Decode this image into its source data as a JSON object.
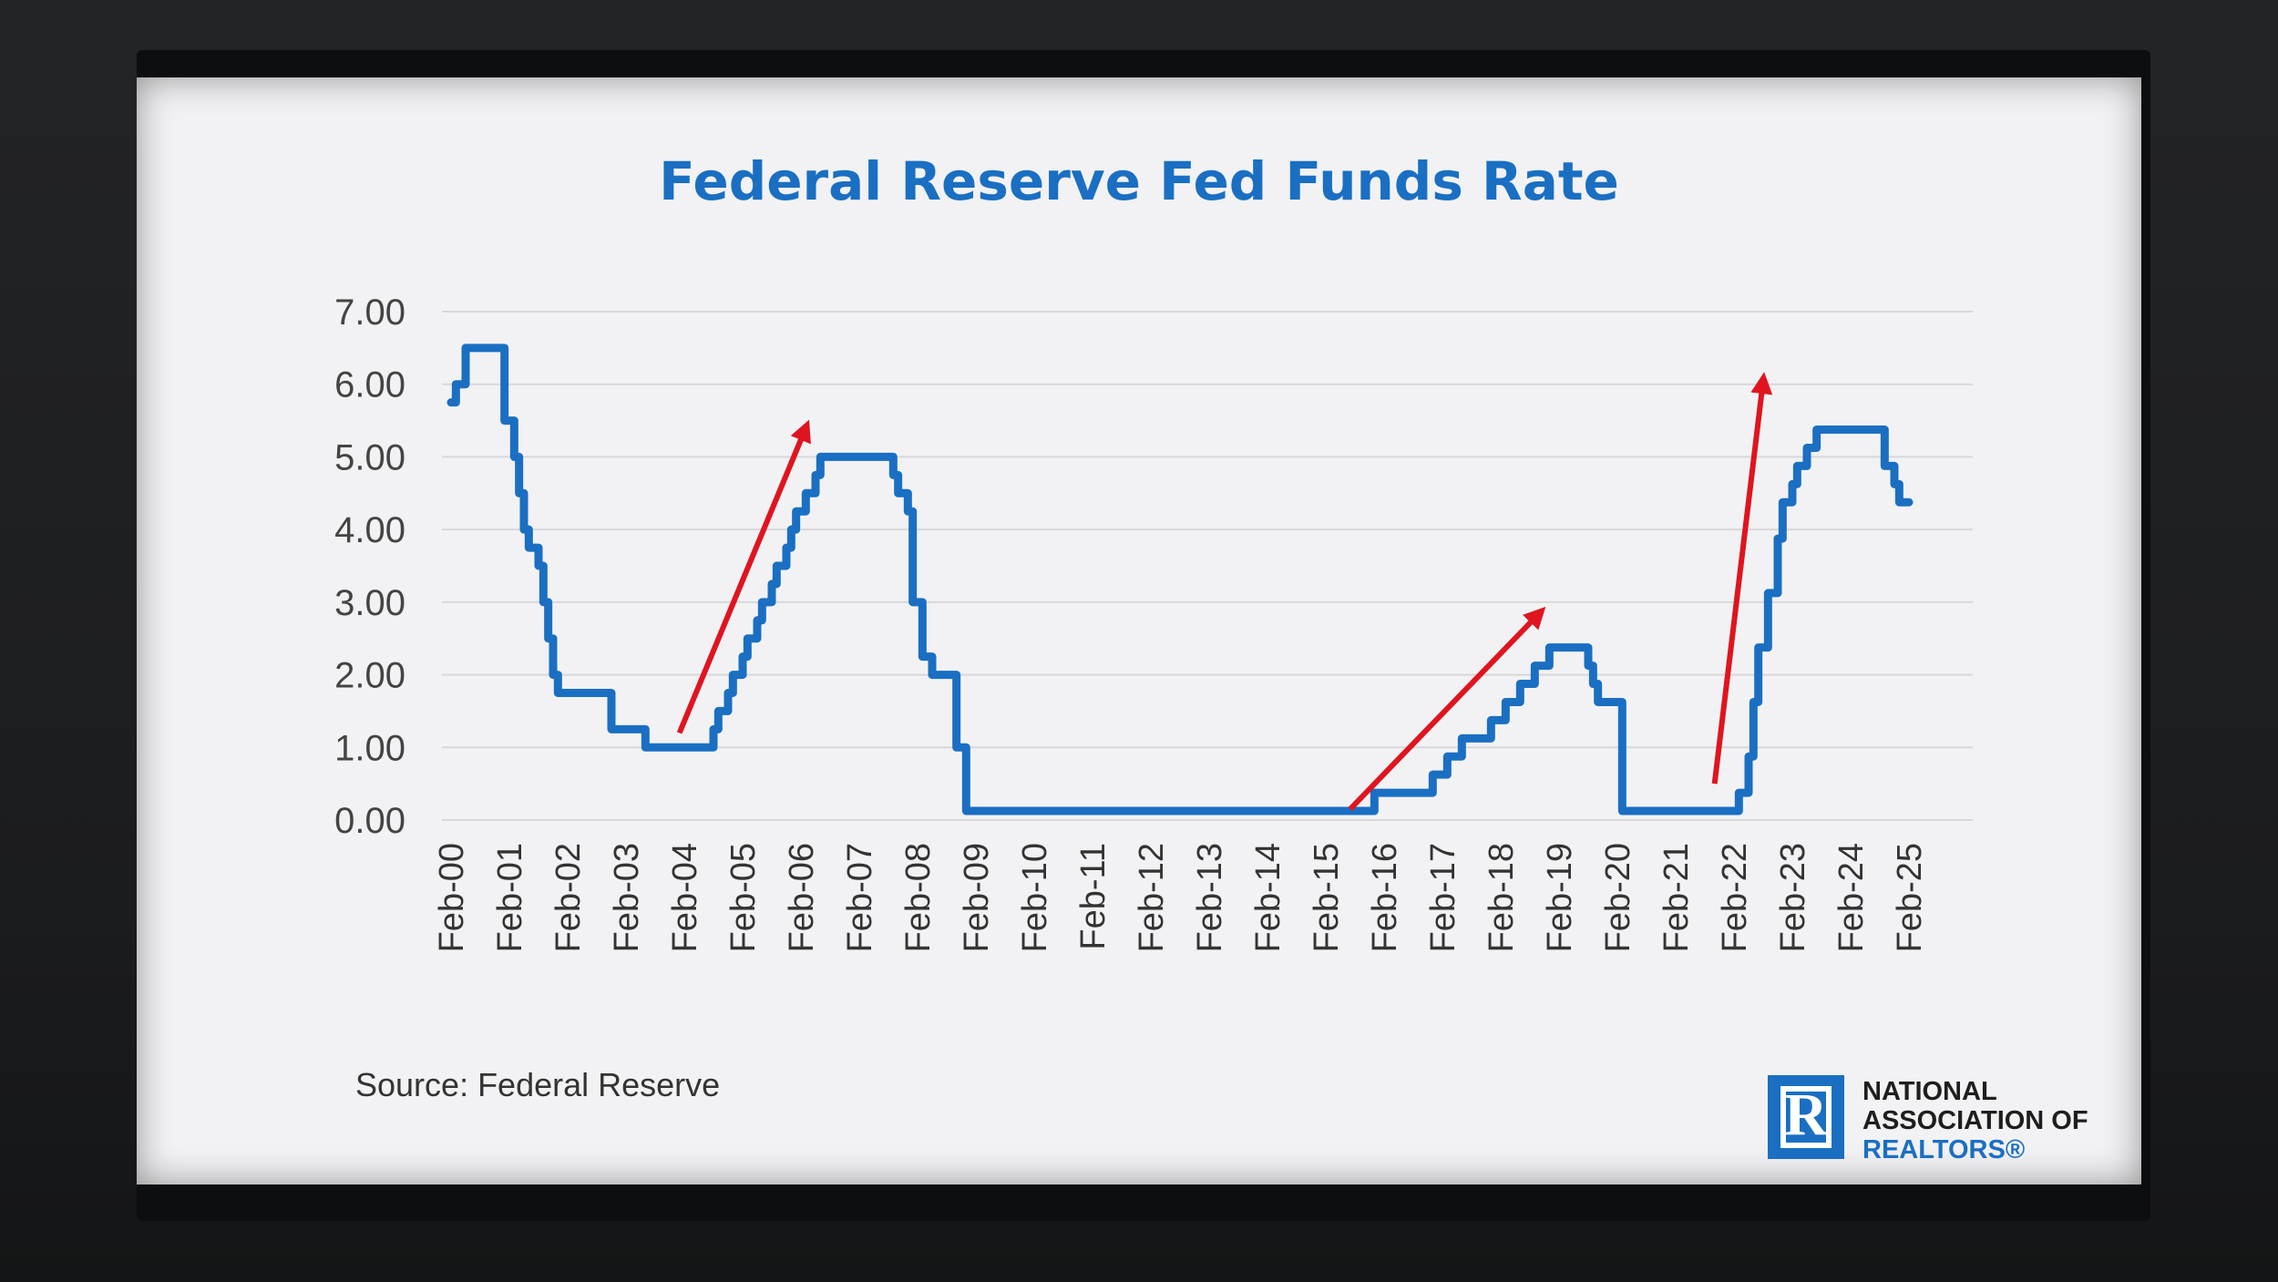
{
  "slide": {
    "source_note": "Source: Federal Reserve",
    "logo": {
      "line1": "NATIONAL",
      "line2": "ASSOCIATION OF",
      "line3": "REALTORS®",
      "brand_color": "#1a6fc2"
    }
  },
  "chart_data": {
    "type": "line",
    "title": "Federal Reserve Fed Funds Rate",
    "xlabel": "",
    "ylabel": "",
    "ylim": [
      0,
      7
    ],
    "y_ticks": [
      "0.00",
      "1.00",
      "2.00",
      "3.00",
      "4.00",
      "5.00",
      "6.00",
      "7.00"
    ],
    "x_ticks": [
      "Feb-00",
      "Feb-01",
      "Feb-02",
      "Feb-03",
      "Feb-04",
      "Feb-05",
      "Feb-06",
      "Feb-07",
      "Feb-08",
      "Feb-09",
      "Feb-10",
      "Feb-11",
      "Feb-12",
      "Feb-13",
      "Feb-14",
      "Feb-15",
      "Feb-16",
      "Feb-17",
      "Feb-18",
      "Feb-19",
      "Feb-20",
      "Feb-21",
      "Feb-22",
      "Feb-23",
      "Feb-24",
      "Feb-25"
    ],
    "grid": true,
    "line_color": "#1a6fc2",
    "arrow_color": "#e0141e",
    "series": [
      {
        "x": [
          "Feb-00",
          "Mar-00",
          "May-00",
          "Dec-00",
          "Jan-01",
          "Feb-01",
          "Mar-01",
          "Apr-01",
          "May-01",
          "Jun-01",
          "Aug-01",
          "Sep-01",
          "Oct-01",
          "Nov-01",
          "Dec-01",
          "Nov-02",
          "Jun-03",
          "Jun-04",
          "Aug-04",
          "Sep-04",
          "Nov-04",
          "Dec-04",
          "Feb-05",
          "Mar-05",
          "May-05",
          "Jun-05",
          "Aug-05",
          "Sep-05",
          "Nov-05",
          "Dec-05",
          "Jan-06",
          "Mar-06",
          "May-06",
          "Jun-06",
          "Sep-07",
          "Oct-07",
          "Dec-07",
          "Jan-08",
          "Feb-08",
          "Mar-08",
          "May-08",
          "Oct-08",
          "Nov-08",
          "Dec-08",
          "Nov-15",
          "Dec-15",
          "Dec-16",
          "Mar-17",
          "Jun-17",
          "Dec-17",
          "Mar-18",
          "Jun-18",
          "Sep-18",
          "Dec-18",
          "Aug-19",
          "Sep-19",
          "Oct-19",
          "Mar-20",
          "Apr-20",
          "Feb-22",
          "Mar-22",
          "May-22",
          "Jun-22",
          "Jul-22",
          "Sep-22",
          "Nov-22",
          "Dec-22",
          "Feb-23",
          "Mar-23",
          "May-23",
          "Jul-23",
          "Sep-24",
          "Nov-24",
          "Dec-24",
          "Feb-25"
        ],
        "values": [
          5.75,
          6.0,
          6.5,
          6.5,
          5.5,
          5.5,
          5.0,
          4.5,
          4.0,
          3.75,
          3.5,
          3.0,
          2.5,
          2.0,
          1.75,
          1.25,
          1.0,
          1.0,
          1.25,
          1.5,
          1.75,
          2.0,
          2.25,
          2.5,
          2.75,
          3.0,
          3.25,
          3.5,
          3.75,
          4.0,
          4.25,
          4.5,
          4.75,
          5.0,
          4.75,
          4.5,
          4.25,
          3.0,
          3.0,
          2.25,
          2.0,
          1.0,
          1.0,
          0.125,
          0.125,
          0.375,
          0.625,
          0.875,
          1.125,
          1.375,
          1.625,
          1.875,
          2.125,
          2.375,
          2.125,
          1.875,
          1.625,
          0.125,
          0.125,
          0.125,
          0.375,
          0.875,
          1.625,
          2.375,
          3.125,
          3.875,
          4.375,
          4.625,
          4.875,
          5.125,
          5.375,
          4.875,
          4.625,
          4.375,
          4.375
        ]
      }
    ],
    "annotations": [
      {
        "type": "arrow",
        "from": {
          "x": "Jan-04",
          "y": 1.2
        },
        "to": {
          "x": "Mar-06",
          "y": 5.4
        }
      },
      {
        "type": "arrow",
        "from": {
          "x": "Jul-15",
          "y": 0.15
        },
        "to": {
          "x": "Oct-18",
          "y": 2.85
        }
      },
      {
        "type": "arrow",
        "from": {
          "x": "Oct-21",
          "y": 0.5
        },
        "to": {
          "x": "Aug-22",
          "y": 6.05
        }
      }
    ]
  }
}
